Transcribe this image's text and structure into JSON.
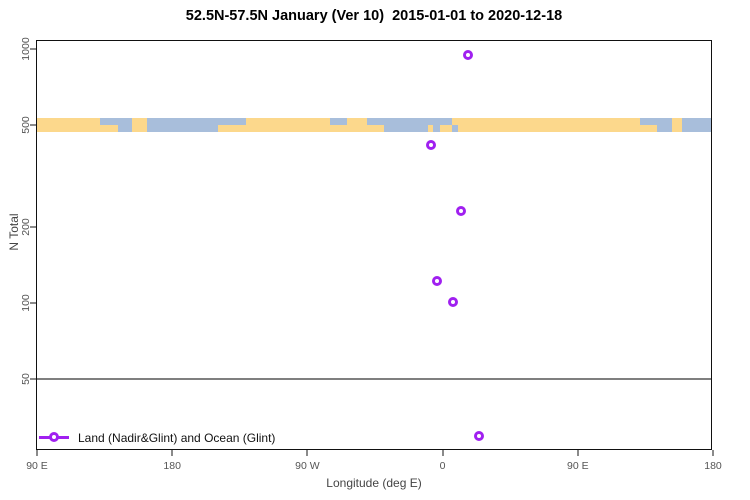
{
  "title": "52.5N-57.5N January (Ver 10)  2015-01-01 to 2020-12-18",
  "axes": {
    "x_label": "Longitude (deg E)",
    "y_label": "N Total",
    "x_tick_labels": [
      "90 E",
      "180",
      "90 W",
      "0",
      "90 E",
      "180"
    ],
    "y_tick_values": [
      1000,
      500,
      200,
      100,
      50
    ]
  },
  "legend": {
    "label": "Land (Nadir&Glint) and Ocean (Glint)"
  },
  "colors": {
    "marker": "#A020F0",
    "land": "#FCD88C",
    "ocean": "#A8BEDB",
    "reference_line": "#7F7F7F",
    "frame": "#111111"
  },
  "chart_data": {
    "type": "scatter",
    "title": "52.5N-57.5N January (Ver 10)  2015-01-01 to 2020-12-18",
    "xlabel": "Longitude (deg E)",
    "ylabel": "N Total",
    "y_scale": "log",
    "ylim": [
      25,
      1100
    ],
    "x_axis_degrees_span": [
      90,
      540
    ],
    "x_tick_degrees": [
      90,
      180,
      270,
      360,
      450,
      540
    ],
    "reference_line_n": 50,
    "legend_position": "bottom-left",
    "series_label": "Land (Nadir&Glint) and Ocean (Glint)",
    "points": [
      {
        "lon_deg_e": 17,
        "n_total": 950
      },
      {
        "lon_deg_e": -8,
        "n_total": 420
      },
      {
        "lon_deg_e": 12,
        "n_total": 230
      },
      {
        "lon_deg_e": -4,
        "n_total": 122
      },
      {
        "lon_deg_e": 7,
        "n_total": 101
      },
      {
        "lon_deg_e": 24,
        "n_total": 30
      }
    ],
    "map_band": {
      "centered_at_n": 500,
      "description": "world coastline strip for 52.5N-57.5N: land vs ocean along longitude axis",
      "segments": [
        {
          "f0": 0.0,
          "f1": 0.0932,
          "t": "land"
        },
        {
          "f0": 0.0932,
          "f1": 0.1198,
          "t": "coast"
        },
        {
          "f0": 0.1198,
          "f1": 0.1405,
          "t": "ocean"
        },
        {
          "f0": 0.1405,
          "f1": 0.1627,
          "t": "land"
        },
        {
          "f0": 0.1627,
          "f1": 0.2692,
          "t": "ocean"
        },
        {
          "f0": 0.2692,
          "f1": 0.3107,
          "t": "coast"
        },
        {
          "f0": 0.3107,
          "f1": 0.4349,
          "t": "land"
        },
        {
          "f0": 0.4349,
          "f1": 0.4601,
          "t": "coast"
        },
        {
          "f0": 0.4601,
          "f1": 0.4896,
          "t": "land"
        },
        {
          "f0": 0.4896,
          "f1": 0.5148,
          "t": "coast"
        },
        {
          "f0": 0.5148,
          "f1": 0.5799,
          "t": "ocean"
        },
        {
          "f0": 0.5799,
          "f1": 0.5873,
          "t": "coast"
        },
        {
          "f0": 0.5873,
          "f1": 0.5976,
          "t": "ocean"
        },
        {
          "f0": 0.5976,
          "f1": 0.6154,
          "t": "coast"
        },
        {
          "f0": 0.6154,
          "f1": 0.6243,
          "t": "coast_inv"
        },
        {
          "f0": 0.6243,
          "f1": 0.895,
          "t": "land"
        },
        {
          "f0": 0.895,
          "f1": 0.9201,
          "t": "coast"
        },
        {
          "f0": 0.9201,
          "f1": 0.9423,
          "t": "ocean"
        },
        {
          "f0": 0.9423,
          "f1": 0.9571,
          "t": "land"
        },
        {
          "f0": 0.9571,
          "f1": 1.0,
          "t": "ocean"
        }
      ]
    }
  }
}
